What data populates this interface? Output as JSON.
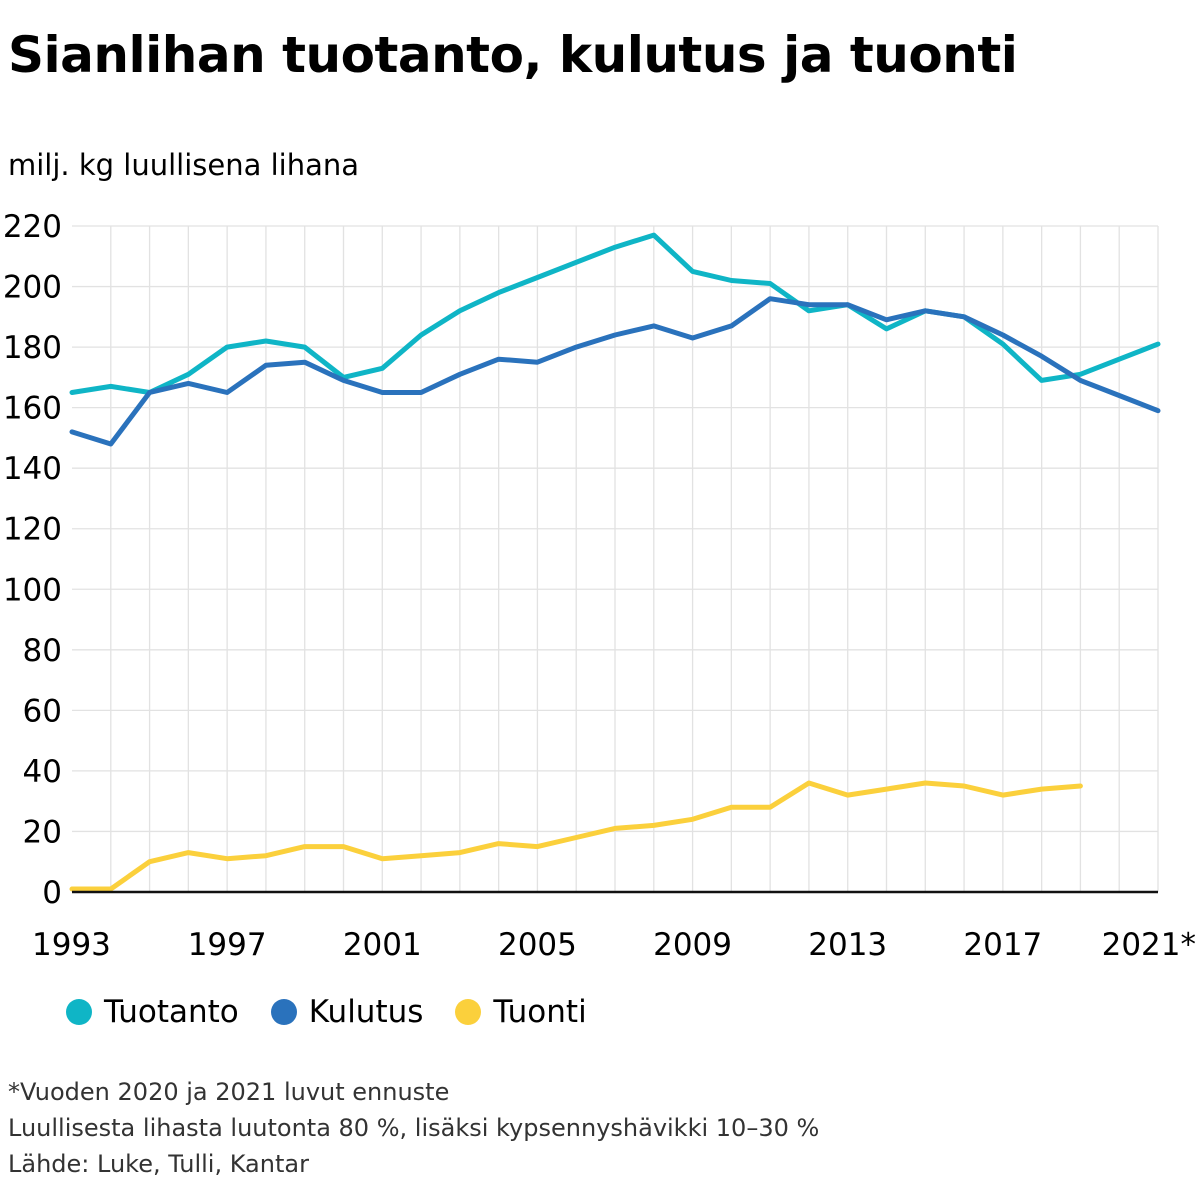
{
  "chart_data": {
    "type": "line",
    "title": "Sianlihan tuotanto, kulutus ja tuonti",
    "ylabel": "milj. kg luullisena lihana",
    "xlabel": "",
    "x": [
      1993,
      1994,
      1995,
      1996,
      1997,
      1998,
      1999,
      2000,
      2001,
      2002,
      2003,
      2004,
      2005,
      2006,
      2007,
      2008,
      2009,
      2010,
      2011,
      2012,
      2013,
      2014,
      2015,
      2016,
      2017,
      2018,
      2019,
      2020,
      2021
    ],
    "xlim": [
      1993,
      2021
    ],
    "ylim": [
      0,
      220
    ],
    "y_ticks": [
      "0",
      "20",
      "40",
      "60",
      "80",
      "100",
      "120",
      "140",
      "160",
      "180",
      "200",
      "220"
    ],
    "x_ticks": [
      {
        "year": 1993,
        "label": "1993"
      },
      {
        "year": 1997,
        "label": "1997"
      },
      {
        "year": 2001,
        "label": "2001"
      },
      {
        "year": 2005,
        "label": "2005"
      },
      {
        "year": 2009,
        "label": "2009"
      },
      {
        "year": 2013,
        "label": "2013"
      },
      {
        "year": 2017,
        "label": "2017"
      },
      {
        "year": 2021,
        "label": "2021*"
      }
    ],
    "grid": true,
    "legend_position": "bottom-left",
    "series": [
      {
        "name": "Tuotanto",
        "color": "#0fb5c6",
        "values": [
          165,
          167,
          165,
          171,
          180,
          182,
          180,
          170,
          173,
          184,
          192,
          198,
          203,
          208,
          213,
          217,
          205,
          202,
          201,
          192,
          194,
          186,
          192,
          190,
          181,
          169,
          171,
          176,
          181
        ]
      },
      {
        "name": "Kulutus",
        "color": "#2a72bc",
        "values": [
          152,
          148,
          165,
          168,
          165,
          174,
          175,
          169,
          165,
          165,
          171,
          176,
          175,
          180,
          184,
          187,
          183,
          187,
          196,
          194,
          194,
          189,
          192,
          190,
          184,
          177,
          169,
          164,
          159
        ]
      },
      {
        "name": "Tuonti",
        "color": "#fbd03c",
        "values": [
          1,
          1,
          10,
          13,
          11,
          12,
          15,
          15,
          11,
          12,
          13,
          16,
          15,
          18,
          21,
          22,
          24,
          28,
          28,
          36,
          32,
          34,
          36,
          35,
          32,
          34,
          35,
          null,
          null
        ]
      }
    ]
  },
  "footnotes": {
    "forecast": "*Vuoden 2020 ja 2021 luvut ennuste",
    "conversion": "Luullisesta lihasta luutonta 80 %, lisäksi kypsennyshävikki 10–30 %",
    "source": "Lähde: Luke, Tulli, Kantar"
  }
}
